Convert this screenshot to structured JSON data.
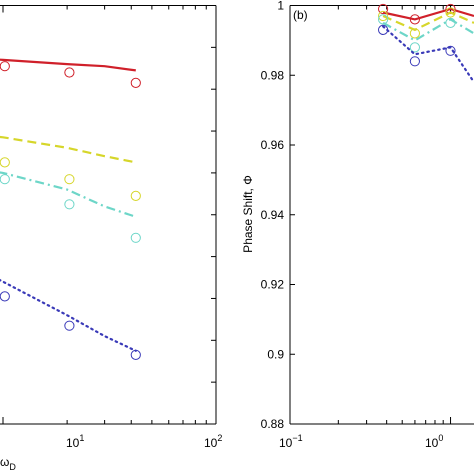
{
  "chart_data": [
    {
      "type": "line",
      "panel": "left (cropped)",
      "xscale": "log",
      "xlim": [
        1,
        100
      ],
      "ylim": [
        0,
        1
      ],
      "x_tick_labels": [
        {
          "x": 10,
          "base": "10",
          "exp": "1"
        },
        {
          "x": 100,
          "base": "10",
          "exp": "2"
        }
      ],
      "xlabel_fragment": {
        "base": "ω",
        "sub": "D"
      },
      "series": [
        {
          "color": "#d0202a",
          "style": "solid",
          "line": {
            "x": [
              1,
              5,
              10,
              20,
              30,
              42
            ],
            "y": [
              0.89,
              0.88,
              0.87,
              0.86,
              0.855,
              0.845
            ]
          },
          "markers": {
            "x": [
              5.2,
              10.2,
              20.5,
              42
            ],
            "y": [
              0.865,
              0.855,
              0.84,
              0.815
            ]
          }
        },
        {
          "color": "#d6d62a",
          "style": "dashed",
          "line": {
            "x": [
              1,
              5,
              10,
              20,
              30,
              42
            ],
            "y": [
              0.705,
              0.7,
              0.685,
              0.66,
              0.64,
              0.625
            ]
          },
          "markers": {
            "x": [
              5.2,
              10.2,
              20.5,
              42
            ],
            "y": [
              0.655,
              0.625,
              0.585,
              0.545
            ]
          }
        },
        {
          "color": "#6dd6c8",
          "style": "dashdot",
          "line": {
            "x": [
              1,
              5,
              10,
              20,
              30,
              42
            ],
            "y": [
              0.635,
              0.62,
              0.6,
              0.56,
              0.52,
              0.495
            ]
          },
          "markers": {
            "x": [
              5.2,
              10.2,
              20.5,
              42
            ],
            "y": [
              0.61,
              0.585,
              0.525,
              0.445
            ]
          }
        },
        {
          "color": "#3a3ab8",
          "style": "dotted",
          "line": {
            "x": [
              1,
              5,
              10,
              20,
              30,
              42
            ],
            "y": [
              0.495,
              0.42,
              0.34,
              0.26,
              0.21,
              0.175
            ]
          },
          "markers": {
            "x": [
              5.2,
              10.2,
              20.5,
              42
            ],
            "y": [
              0.385,
              0.305,
              0.235,
              0.165
            ]
          }
        }
      ]
    },
    {
      "type": "line",
      "panel": "right (b, cropped)",
      "tag": "(b)",
      "xscale": "log",
      "xlim": [
        0.1,
        1.4
      ],
      "ylim": [
        0.88,
        1
      ],
      "ylabel": "Phase Shift, Φ",
      "y_ticks": [
        0.88,
        0.9,
        0.92,
        0.94,
        0.96,
        0.98,
        1
      ],
      "y_tick_labels": [
        "0.88",
        "0.9",
        "0.92",
        "0.94",
        "0.96",
        "0.98",
        "1"
      ],
      "x_tick_labels": [
        {
          "x": 0.1,
          "base": "10",
          "exp": "−1"
        },
        {
          "x": 1,
          "base": "10",
          "exp": "0"
        }
      ],
      "series": [
        {
          "color": "#d0202a",
          "style": "solid",
          "line": {
            "x": [
              0.38,
              0.6,
              1.0,
              1.4
            ],
            "y": [
              0.998,
              0.996,
              0.999,
              0.997
            ]
          },
          "markers": {
            "x": [
              0.38,
              0.6,
              1.0
            ],
            "y": [
              0.999,
              0.996,
              0.999
            ]
          }
        },
        {
          "color": "#d6d62a",
          "style": "dashed",
          "line": {
            "x": [
              0.38,
              0.6,
              1.0,
              1.4
            ],
            "y": [
              0.997,
              0.993,
              0.998,
              0.995
            ]
          },
          "markers": {
            "x": [
              0.38,
              0.6,
              1.0
            ],
            "y": [
              0.997,
              0.992,
              0.998
            ]
          }
        },
        {
          "color": "#6dd6c8",
          "style": "dashdot",
          "line": {
            "x": [
              0.38,
              0.6,
              1.0,
              1.4
            ],
            "y": [
              0.995,
              0.99,
              0.996,
              0.992
            ]
          },
          "markers": {
            "x": [
              0.38,
              0.6,
              1.0
            ],
            "y": [
              0.996,
              0.988,
              0.995
            ]
          }
        },
        {
          "color": "#3a3ab8",
          "style": "dotted",
          "line": {
            "x": [
              0.38,
              0.6,
              1.0,
              1.4
            ],
            "y": [
              0.994,
              0.986,
              0.988,
              0.978
            ]
          },
          "markers": {
            "x": [
              0.38,
              0.6,
              1.0
            ],
            "y": [
              0.993,
              0.984,
              0.987
            ]
          }
        }
      ]
    }
  ]
}
